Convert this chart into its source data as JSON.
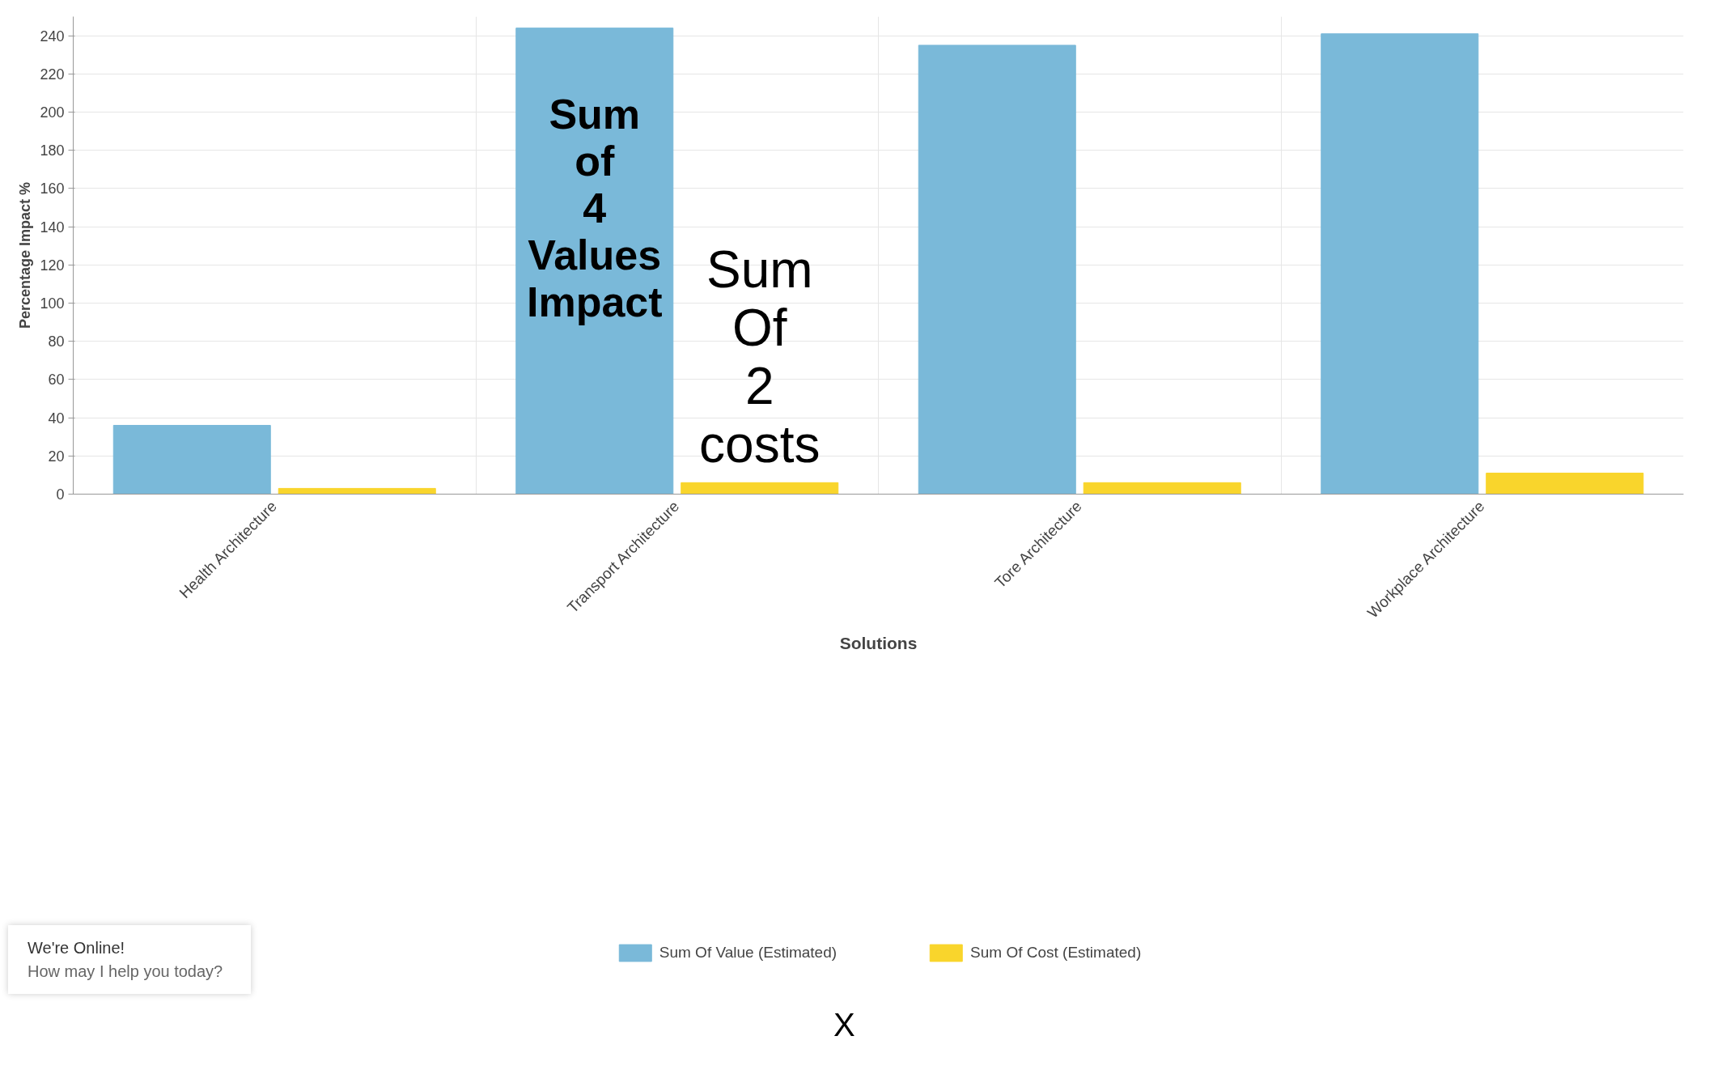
{
  "chart_data": {
    "type": "bar",
    "xlabel": "Solutions",
    "ylabel": "Percentage Impact %",
    "categories": [
      "Health Architecture",
      "Transport Architecture",
      "Tore Architecture",
      "Workplace Architecture"
    ],
    "series": [
      {
        "name": "Sum Of Value (Estimated)",
        "color": "#7ab9d9",
        "values": [
          36,
          244,
          235,
          241
        ]
      },
      {
        "name": "Sum Of Cost (Estimated)",
        "color": "#f9d52c",
        "values": [
          3,
          6,
          6,
          11
        ]
      }
    ],
    "ylim": [
      0,
      250
    ],
    "yticks": [
      0,
      20,
      40,
      60,
      80,
      100,
      120,
      140,
      160,
      180,
      200,
      220,
      240
    ],
    "grid": true,
    "legend": "bottom",
    "annotations": [
      {
        "text": "Sum of 4 Values Impact",
        "x": "Transport Architecture",
        "y": 150
      },
      {
        "text": "Sum Of 2 costs",
        "x": "Transport Architecture",
        "y": 72
      },
      "We're Online!",
      "How may I help you today?",
      "X"
    ]
  }
}
